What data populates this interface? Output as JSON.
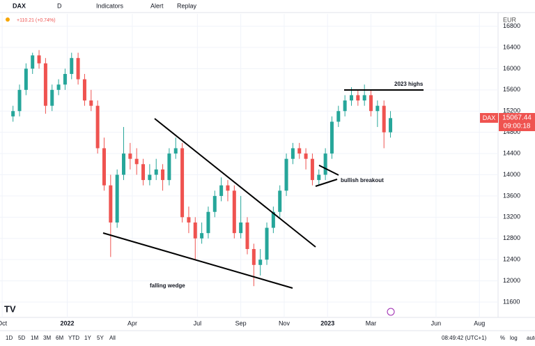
{
  "toolbar": {
    "symbol": "DAX",
    "interval": "D",
    "buttons": [
      "Indicators",
      "Alert",
      "Replay"
    ]
  },
  "change": "+110.21 (+0.74%)",
  "currency": "EUR",
  "price_tag": {
    "symbol": "DAX",
    "price": "15067.44",
    "countdown": "09:00:18"
  },
  "ranges": [
    "1D",
    "5D",
    "1M",
    "3M",
    "6M",
    "YTD",
    "1Y",
    "5Y",
    "All"
  ],
  "clock": "08:49:42 (UTC+1)",
  "scale_options": [
    "%",
    "log",
    "auto"
  ],
  "chart_data": {
    "type": "candlestick",
    "annotations": [
      "2023 highs",
      "bullish breakout",
      "falling wedge"
    ],
    "up_color": "#26a69a",
    "down_color": "#ef5350",
    "xlim": [
      -0.1,
      22.86
    ],
    "xticks": [
      {
        "value": 0,
        "label": "Oct"
      },
      {
        "value": 3,
        "label": "2022"
      },
      {
        "value": 6,
        "label": "Apr"
      },
      {
        "value": 9,
        "label": "Jul"
      },
      {
        "value": 11,
        "label": "Sep"
      },
      {
        "value": 13,
        "label": "Nov"
      },
      {
        "value": 15,
        "label": "2023"
      },
      {
        "value": 17,
        "label": "Mar"
      },
      {
        "value": 20,
        "label": "Jun"
      },
      {
        "value": 22,
        "label": "Aug"
      }
    ],
    "ylim": [
      11311,
      17031
    ],
    "yticks": [
      11600,
      12000,
      12400,
      12800,
      13200,
      13600,
      14000,
      14400,
      14800,
      15200,
      15600,
      16000,
      16400,
      16800
    ],
    "x": [
      0.5,
      0.8,
      1.1,
      1.4,
      1.7,
      2.0,
      2.3,
      2.6,
      2.9,
      3.2,
      3.5,
      3.8,
      4.1,
      4.4,
      4.7,
      5.0,
      5.3,
      5.6,
      5.9,
      6.2,
      6.5,
      6.8,
      7.1,
      7.4,
      7.7,
      8.0,
      8.3,
      8.6,
      8.9,
      9.2,
      9.5,
      9.8,
      10.1,
      10.4,
      10.7,
      11.0,
      11.3,
      11.6,
      11.9,
      12.2,
      12.5,
      12.8,
      13.1,
      13.4,
      13.7,
      14.0,
      14.3,
      14.6,
      14.9,
      15.2,
      15.5,
      15.8,
      16.1,
      16.4,
      16.7,
      17.0,
      17.3,
      17.6,
      17.9
    ],
    "open": [
      15100,
      15200,
      15600,
      16000,
      16250,
      16100,
      15300,
      15600,
      15700,
      15900,
      16200,
      15800,
      15400,
      15300,
      14500,
      13800,
      13100,
      14000,
      14400,
      14300,
      14200,
      13900,
      14000,
      14100,
      13900,
      14400,
      14500,
      13200,
      13100,
      12800,
      12900,
      13300,
      13600,
      13800,
      13700,
      12900,
      13100,
      12600,
      12300,
      12400,
      13000,
      13300,
      13700,
      14300,
      14500,
      14400,
      14300,
      13900,
      14000,
      14400,
      15000,
      15200,
      15400,
      15500,
      15400,
      15500,
      15200,
      15300,
      14800
    ],
    "high": [
      15300,
      15700,
      16100,
      16300,
      16350,
      16200,
      15700,
      15800,
      16000,
      16300,
      16300,
      15900,
      15600,
      15400,
      14700,
      14000,
      14100,
      14900,
      14600,
      14500,
      14300,
      14200,
      14300,
      14200,
      14500,
      14700,
      14600,
      13400,
      13200,
      13100,
      13400,
      13700,
      13950,
      13900,
      13800,
      13600,
      13200,
      12700,
      12600,
      13100,
      13400,
      13800,
      14400,
      14600,
      14600,
      14500,
      14400,
      14100,
      14500,
      15100,
      15300,
      15500,
      15650,
      15600,
      15700,
      15600,
      15400,
      15400,
      15200
    ],
    "low": [
      15000,
      15100,
      15500,
      15900,
      16000,
      15150,
      15200,
      15500,
      15600,
      15800,
      15700,
      15300,
      15200,
      14400,
      13700,
      12450,
      13000,
      13900,
      14100,
      14000,
      13800,
      13800,
      13900,
      13700,
      13800,
      14300,
      13100,
      12900,
      12400,
      12700,
      12800,
      13200,
      13500,
      13500,
      12800,
      12800,
      12500,
      11900,
      12100,
      12300,
      12900,
      13200,
      13600,
      14200,
      14300,
      14100,
      13800,
      13800,
      13900,
      14300,
      14900,
      15100,
      15300,
      15300,
      15300,
      15100,
      14900,
      14500,
      14700
    ],
    "close": [
      15200,
      15600,
      16000,
      16250,
      16100,
      15300,
      15600,
      15700,
      15900,
      16200,
      15800,
      15400,
      15300,
      14500,
      13800,
      13100,
      14000,
      14400,
      14300,
      14200,
      13900,
      14000,
      14100,
      13900,
      14400,
      14500,
      13200,
      13100,
      12800,
      12900,
      13300,
      13600,
      13800,
      13700,
      12900,
      13100,
      12600,
      12300,
      12400,
      13000,
      13300,
      13700,
      14300,
      14500,
      14400,
      14300,
      13900,
      14000,
      14400,
      15000,
      15200,
      15400,
      15500,
      15400,
      15500,
      15200,
      15300,
      14800,
      15067.44
    ]
  }
}
